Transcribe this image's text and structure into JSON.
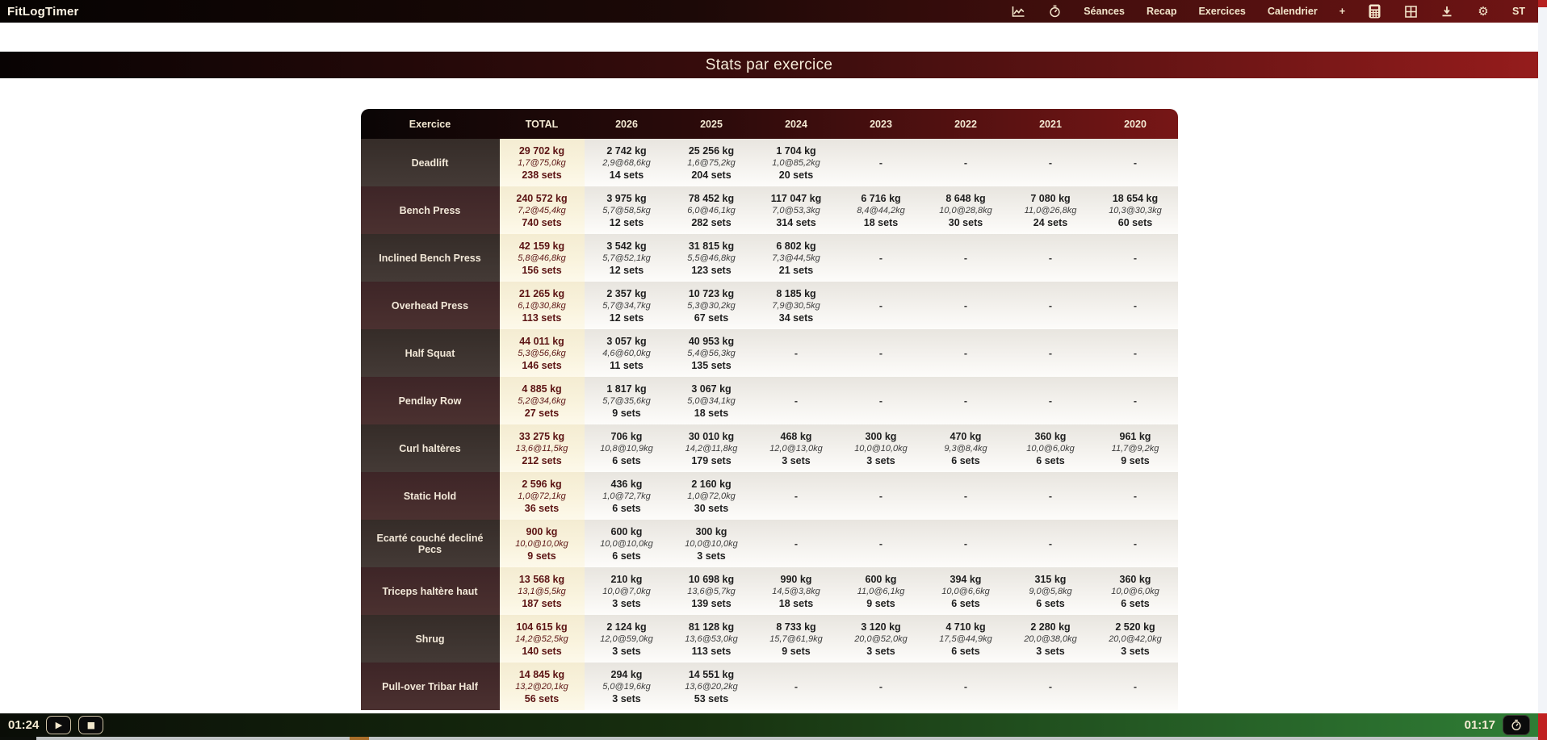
{
  "app": {
    "title": "FitLogTimer"
  },
  "nav": {
    "seances": "Séances",
    "recap": "Recap",
    "exercices": "Exercices",
    "calendrier": "Calendrier",
    "plus": "+",
    "profile": "ST"
  },
  "icons": {
    "gear": "⚙",
    "play": "▶",
    "stop": "■"
  },
  "banner": {
    "title": "Stats par exercice"
  },
  "colors": {
    "accent_red": "#701414",
    "banner_red": "#951c1c",
    "accent_green": "#2f7d35",
    "cream": "#f3e6cb",
    "total_text": "#5c1414"
  },
  "table": {
    "columns": [
      "Exercice",
      "TOTAL",
      "2026",
      "2025",
      "2024",
      "2023",
      "2022",
      "2021",
      "2020"
    ],
    "rows": [
      {
        "name": "Deadlift",
        "cells": [
          {
            "kg": "29 702 kg",
            "avg": "1,7@75,0kg",
            "sets": "238 sets"
          },
          {
            "kg": "2 742 kg",
            "avg": "2,9@68,6kg",
            "sets": "14 sets"
          },
          {
            "kg": "25 256 kg",
            "avg": "1,6@75,2kg",
            "sets": "204 sets"
          },
          {
            "kg": "1 704 kg",
            "avg": "1,0@85,2kg",
            "sets": "20 sets"
          },
          null,
          null,
          null,
          null
        ]
      },
      {
        "name": "Bench Press",
        "cells": [
          {
            "kg": "240 572 kg",
            "avg": "7,2@45,4kg",
            "sets": "740 sets"
          },
          {
            "kg": "3 975 kg",
            "avg": "5,7@58,5kg",
            "sets": "12 sets"
          },
          {
            "kg": "78 452 kg",
            "avg": "6,0@46,1kg",
            "sets": "282 sets"
          },
          {
            "kg": "117 047 kg",
            "avg": "7,0@53,3kg",
            "sets": "314 sets"
          },
          {
            "kg": "6 716 kg",
            "avg": "8,4@44,2kg",
            "sets": "18 sets"
          },
          {
            "kg": "8 648 kg",
            "avg": "10,0@28,8kg",
            "sets": "30 sets"
          },
          {
            "kg": "7 080 kg",
            "avg": "11,0@26,8kg",
            "sets": "24 sets"
          },
          {
            "kg": "18 654 kg",
            "avg": "10,3@30,3kg",
            "sets": "60 sets"
          }
        ]
      },
      {
        "name": "Inclined Bench Press",
        "cells": [
          {
            "kg": "42 159 kg",
            "avg": "5,8@46,8kg",
            "sets": "156 sets"
          },
          {
            "kg": "3 542 kg",
            "avg": "5,7@52,1kg",
            "sets": "12 sets"
          },
          {
            "kg": "31 815 kg",
            "avg": "5,5@46,8kg",
            "sets": "123 sets"
          },
          {
            "kg": "6 802 kg",
            "avg": "7,3@44,5kg",
            "sets": "21 sets"
          },
          null,
          null,
          null,
          null
        ]
      },
      {
        "name": "Overhead Press",
        "cells": [
          {
            "kg": "21 265 kg",
            "avg": "6,1@30,8kg",
            "sets": "113 sets"
          },
          {
            "kg": "2 357 kg",
            "avg": "5,7@34,7kg",
            "sets": "12 sets"
          },
          {
            "kg": "10 723 kg",
            "avg": "5,3@30,2kg",
            "sets": "67 sets"
          },
          {
            "kg": "8 185 kg",
            "avg": "7,9@30,5kg",
            "sets": "34 sets"
          },
          null,
          null,
          null,
          null
        ]
      },
      {
        "name": "Half Squat",
        "cells": [
          {
            "kg": "44 011 kg",
            "avg": "5,3@56,6kg",
            "sets": "146 sets"
          },
          {
            "kg": "3 057 kg",
            "avg": "4,6@60,0kg",
            "sets": "11 sets"
          },
          {
            "kg": "40 953 kg",
            "avg": "5,4@56,3kg",
            "sets": "135 sets"
          },
          null,
          null,
          null,
          null,
          null
        ]
      },
      {
        "name": "Pendlay Row",
        "cells": [
          {
            "kg": "4 885 kg",
            "avg": "5,2@34,6kg",
            "sets": "27 sets"
          },
          {
            "kg": "1 817 kg",
            "avg": "5,7@35,6kg",
            "sets": "9 sets"
          },
          {
            "kg": "3 067 kg",
            "avg": "5,0@34,1kg",
            "sets": "18 sets"
          },
          null,
          null,
          null,
          null,
          null
        ]
      },
      {
        "name": "Curl haltères",
        "cells": [
          {
            "kg": "33 275 kg",
            "avg": "13,6@11,5kg",
            "sets": "212 sets"
          },
          {
            "kg": "706 kg",
            "avg": "10,8@10,9kg",
            "sets": "6 sets"
          },
          {
            "kg": "30 010 kg",
            "avg": "14,2@11,8kg",
            "sets": "179 sets"
          },
          {
            "kg": "468 kg",
            "avg": "12,0@13,0kg",
            "sets": "3 sets"
          },
          {
            "kg": "300 kg",
            "avg": "10,0@10,0kg",
            "sets": "3 sets"
          },
          {
            "kg": "470 kg",
            "avg": "9,3@8,4kg",
            "sets": "6 sets"
          },
          {
            "kg": "360 kg",
            "avg": "10,0@6,0kg",
            "sets": "6 sets"
          },
          {
            "kg": "961 kg",
            "avg": "11,7@9,2kg",
            "sets": "9 sets"
          }
        ]
      },
      {
        "name": "Static Hold",
        "cells": [
          {
            "kg": "2 596 kg",
            "avg": "1,0@72,1kg",
            "sets": "36 sets"
          },
          {
            "kg": "436 kg",
            "avg": "1,0@72,7kg",
            "sets": "6 sets"
          },
          {
            "kg": "2 160 kg",
            "avg": "1,0@72,0kg",
            "sets": "30 sets"
          },
          null,
          null,
          null,
          null,
          null
        ]
      },
      {
        "name": "Ecarté couché decliné Pecs",
        "cells": [
          {
            "kg": "900 kg",
            "avg": "10,0@10,0kg",
            "sets": "9 sets"
          },
          {
            "kg": "600 kg",
            "avg": "10,0@10,0kg",
            "sets": "6 sets"
          },
          {
            "kg": "300 kg",
            "avg": "10,0@10,0kg",
            "sets": "3 sets"
          },
          null,
          null,
          null,
          null,
          null
        ]
      },
      {
        "name": "Triceps haltère haut",
        "cells": [
          {
            "kg": "13 568 kg",
            "avg": "13,1@5,5kg",
            "sets": "187 sets"
          },
          {
            "kg": "210 kg",
            "avg": "10,0@7,0kg",
            "sets": "3 sets"
          },
          {
            "kg": "10 698 kg",
            "avg": "13,6@5,7kg",
            "sets": "139 sets"
          },
          {
            "kg": "990 kg",
            "avg": "14,5@3,8kg",
            "sets": "18 sets"
          },
          {
            "kg": "600 kg",
            "avg": "11,0@6,1kg",
            "sets": "9 sets"
          },
          {
            "kg": "394 kg",
            "avg": "10,0@6,6kg",
            "sets": "6 sets"
          },
          {
            "kg": "315 kg",
            "avg": "9,0@5,8kg",
            "sets": "6 sets"
          },
          {
            "kg": "360 kg",
            "avg": "10,0@6,0kg",
            "sets": "6 sets"
          }
        ]
      },
      {
        "name": "Shrug",
        "cells": [
          {
            "kg": "104 615 kg",
            "avg": "14,2@52,5kg",
            "sets": "140 sets"
          },
          {
            "kg": "2 124 kg",
            "avg": "12,0@59,0kg",
            "sets": "3 sets"
          },
          {
            "kg": "81 128 kg",
            "avg": "13,6@53,0kg",
            "sets": "113 sets"
          },
          {
            "kg": "8 733 kg",
            "avg": "15,7@61,9kg",
            "sets": "9 sets"
          },
          {
            "kg": "3 120 kg",
            "avg": "20,0@52,0kg",
            "sets": "3 sets"
          },
          {
            "kg": "4 710 kg",
            "avg": "17,5@44,9kg",
            "sets": "6 sets"
          },
          {
            "kg": "2 280 kg",
            "avg": "20,0@38,0kg",
            "sets": "3 sets"
          },
          {
            "kg": "2 520 kg",
            "avg": "20,0@42,0kg",
            "sets": "3 sets"
          }
        ]
      },
      {
        "name": "Pull-over Tribar Half",
        "cells": [
          {
            "kg": "14 845 kg",
            "avg": "13,2@20,1kg",
            "sets": "56 sets"
          },
          {
            "kg": "294 kg",
            "avg": "5,0@19,6kg",
            "sets": "3 sets"
          },
          {
            "kg": "14 551 kg",
            "avg": "13,6@20,2kg",
            "sets": "53 sets"
          },
          null,
          null,
          null,
          null,
          null
        ]
      }
    ],
    "empty_cell": "-"
  },
  "bottombar": {
    "elapsed_time": "01:24",
    "rest_time": "01:17"
  }
}
